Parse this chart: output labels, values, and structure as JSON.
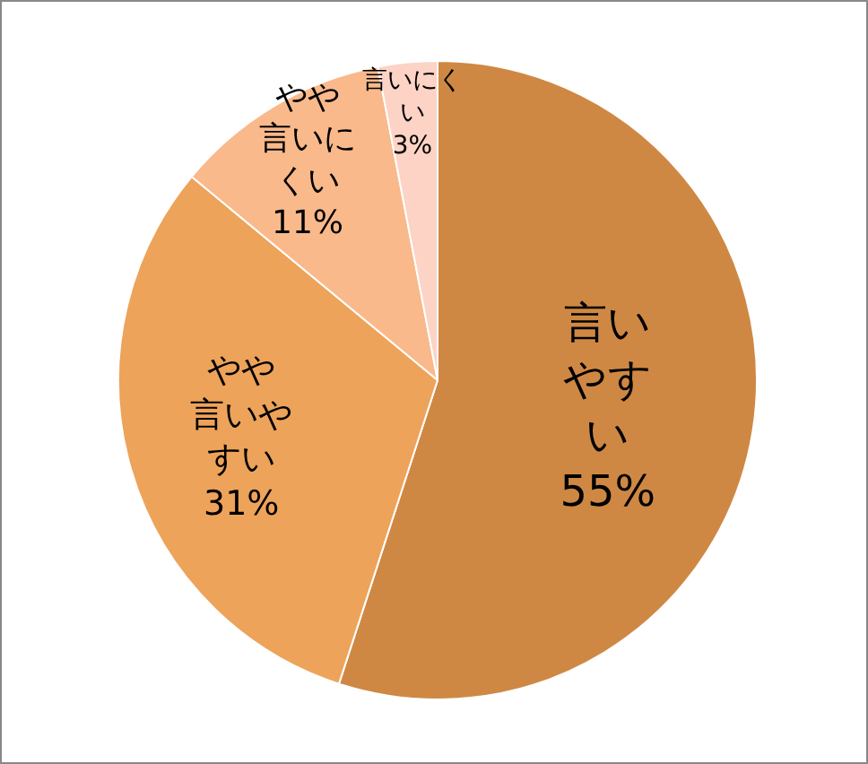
{
  "chart_data": {
    "type": "pie",
    "categories": [
      "言いやすい",
      "やや言いやすい",
      "やや言いにくい",
      "言いにくい"
    ],
    "values": [
      55,
      31,
      11,
      3
    ],
    "value_labels": [
      "55%",
      "31%",
      "11%",
      "3%"
    ],
    "colors": [
      "#cf8843",
      "#eda35a",
      "#f9b98b",
      "#fcd3c5"
    ],
    "legend": false
  }
}
